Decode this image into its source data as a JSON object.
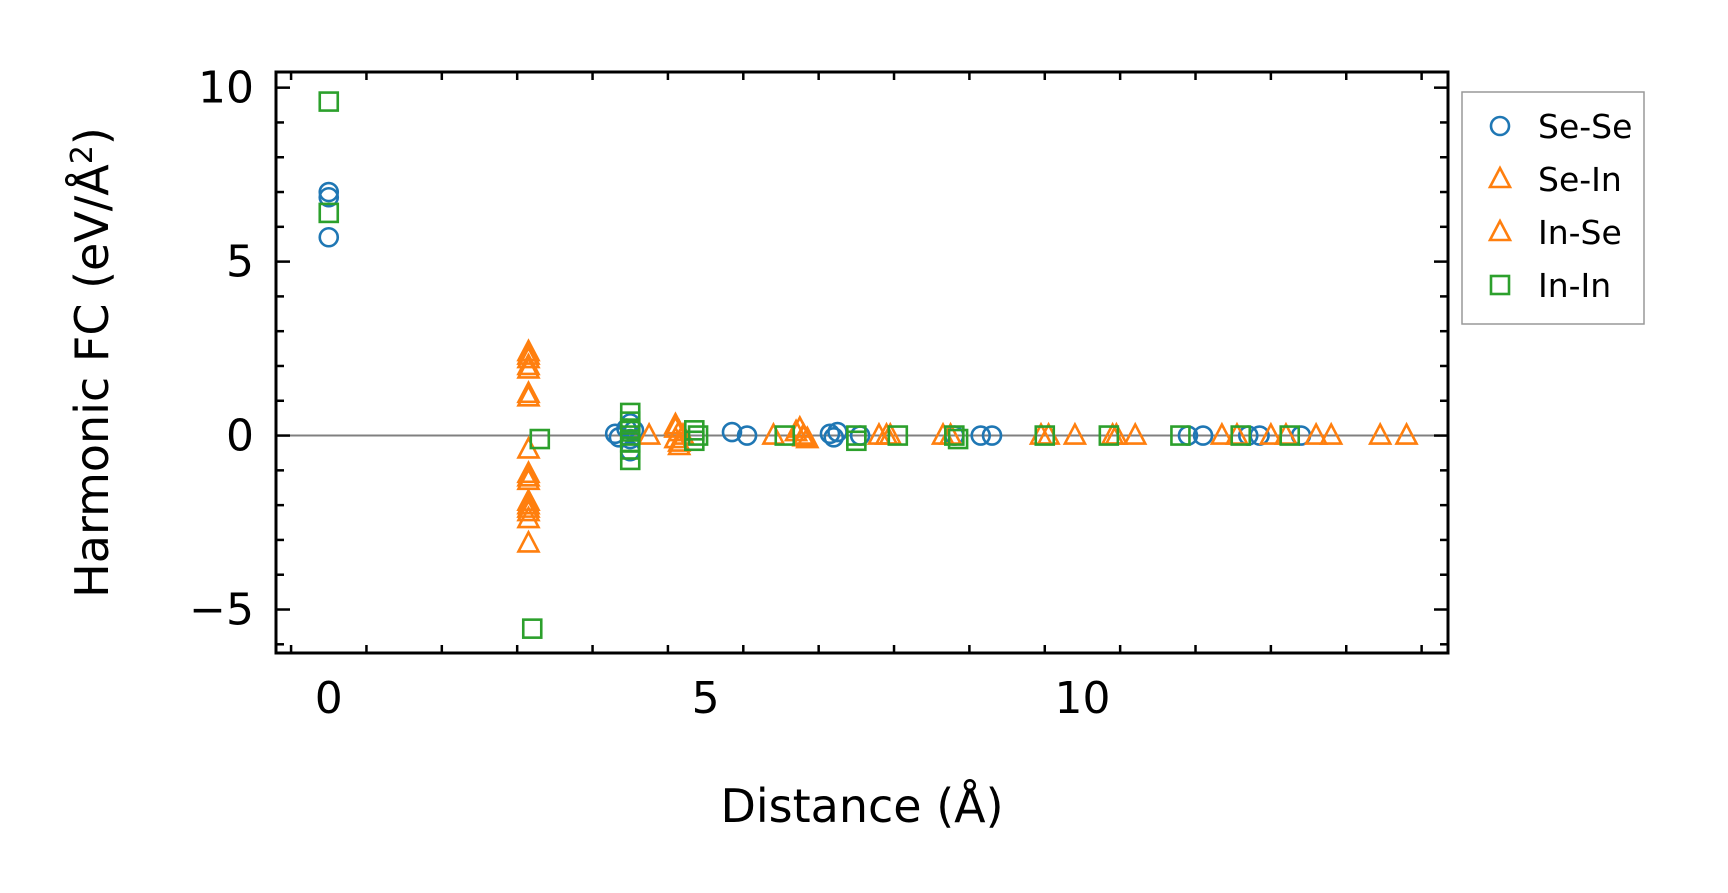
{
  "chart_data": {
    "type": "scatter",
    "title": "",
    "xlabel": "Distance (Å)",
    "ylabel": "Harmonic FC (eV/Å",
    "ylabel_superscript": "2",
    "ylabel_close": ")",
    "xlim": [
      -0.7,
      14.85
    ],
    "ylim": [
      -6.25,
      10.45
    ],
    "xticks": [
      0,
      5,
      10
    ],
    "xtick_labels": [
      "0",
      "5",
      "10"
    ],
    "yticks": [
      -5,
      0,
      5,
      10
    ],
    "ytick_labels": [
      "−5",
      "0",
      "5",
      "10"
    ],
    "zero_line": true,
    "legend_position": "outside-right-top",
    "series": [
      {
        "name": "Se-Se",
        "marker": "circle",
        "color": "#1f77b4",
        "points": [
          [
            0,
            7.0
          ],
          [
            0,
            6.85
          ],
          [
            0,
            5.7
          ],
          [
            3.8,
            0.05
          ],
          [
            3.85,
            -0.05
          ],
          [
            3.95,
            0.2
          ],
          [
            4.0,
            0.35
          ],
          [
            4.0,
            -0.1
          ],
          [
            4.0,
            -0.45
          ],
          [
            4.05,
            0.15
          ],
          [
            5.35,
            0.1
          ],
          [
            5.55,
            0.0
          ],
          [
            6.65,
            0.05
          ],
          [
            6.7,
            -0.05
          ],
          [
            6.75,
            0.1
          ],
          [
            7.05,
            0.0
          ],
          [
            8.3,
            0.0
          ],
          [
            8.65,
            0.0
          ],
          [
            8.8,
            0.0
          ],
          [
            11.4,
            0.0
          ],
          [
            11.6,
            0.0
          ],
          [
            12.2,
            0.0
          ],
          [
            12.35,
            0.0
          ],
          [
            12.9,
            0.0
          ]
        ]
      },
      {
        "name": "Se-In",
        "marker": "triangle",
        "color": "#ff7f0e",
        "points": [
          [
            2.65,
            2.4
          ],
          [
            2.65,
            2.2
          ],
          [
            2.65,
            1.9
          ],
          [
            2.65,
            1.2
          ],
          [
            2.65,
            -0.4
          ],
          [
            2.65,
            -1.1
          ],
          [
            2.65,
            -1.3
          ],
          [
            2.65,
            -1.9
          ],
          [
            2.65,
            -2.1
          ],
          [
            2.65,
            -2.4
          ],
          [
            4.25,
            0.0
          ],
          [
            4.6,
            0.2
          ],
          [
            4.6,
            -0.1
          ],
          [
            4.65,
            0.1
          ],
          [
            4.65,
            -0.3
          ],
          [
            4.7,
            0.0
          ],
          [
            5.9,
            0.0
          ],
          [
            6.2,
            0.1
          ],
          [
            6.3,
            0.0
          ],
          [
            6.35,
            -0.1
          ],
          [
            7.3,
            0.0
          ],
          [
            7.45,
            0.0
          ],
          [
            8.15,
            0.0
          ],
          [
            9.45,
            0.0
          ],
          [
            9.9,
            0.0
          ],
          [
            10.4,
            0.0
          ],
          [
            10.7,
            0.0
          ],
          [
            11.85,
            0.0
          ],
          [
            12.5,
            0.0
          ],
          [
            13.1,
            0.0
          ],
          [
            13.3,
            0.0
          ]
        ]
      },
      {
        "name": "In-Se",
        "marker": "triangle",
        "color": "#ff7f0e",
        "points": [
          [
            2.65,
            2.3
          ],
          [
            2.65,
            2.0
          ],
          [
            2.65,
            1.1
          ],
          [
            2.65,
            -1.2
          ],
          [
            2.65,
            -2.0
          ],
          [
            2.65,
            -2.2
          ],
          [
            2.65,
            -3.1
          ],
          [
            4.6,
            0.3
          ],
          [
            4.65,
            -0.2
          ],
          [
            6.25,
            0.2
          ],
          [
            6.3,
            -0.05
          ],
          [
            7.4,
            0.0
          ],
          [
            8.25,
            0.0
          ],
          [
            9.55,
            0.0
          ],
          [
            10.45,
            0.0
          ],
          [
            12.05,
            0.0
          ],
          [
            12.7,
            0.0
          ],
          [
            13.95,
            0.0
          ],
          [
            14.3,
            0.0
          ]
        ]
      },
      {
        "name": "In-In",
        "marker": "square",
        "color": "#2ca02c",
        "points": [
          [
            0,
            9.6
          ],
          [
            0,
            6.4
          ],
          [
            2.8,
            -0.1
          ],
          [
            2.7,
            -5.55
          ],
          [
            4.0,
            0.65
          ],
          [
            4.0,
            0.4
          ],
          [
            4.0,
            0.2
          ],
          [
            4.0,
            0.0
          ],
          [
            4.0,
            -0.2
          ],
          [
            4.0,
            -0.4
          ],
          [
            4.0,
            -0.7
          ],
          [
            4.85,
            0.15
          ],
          [
            4.9,
            0.0
          ],
          [
            4.85,
            -0.15
          ],
          [
            6.05,
            0.0
          ],
          [
            7.0,
            0.0
          ],
          [
            7.0,
            -0.15
          ],
          [
            7.55,
            0.0
          ],
          [
            8.3,
            0.0
          ],
          [
            8.35,
            -0.1
          ],
          [
            9.5,
            0.0
          ],
          [
            10.35,
            0.0
          ],
          [
            11.3,
            0.0
          ],
          [
            12.1,
            0.0
          ],
          [
            12.75,
            0.0
          ]
        ]
      }
    ]
  }
}
